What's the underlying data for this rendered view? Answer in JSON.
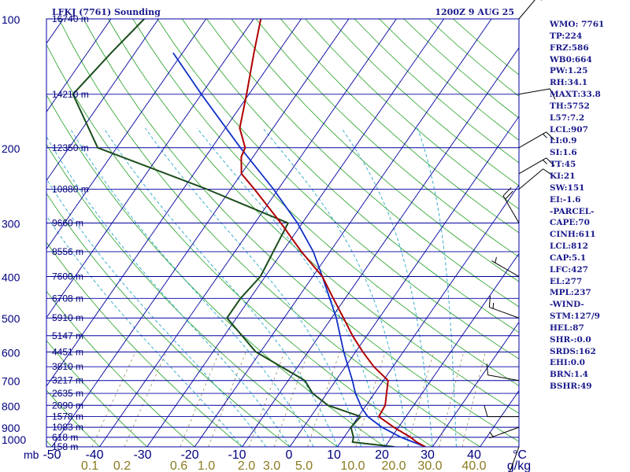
{
  "header": {
    "station_title": "LFKJ (7761) Sounding",
    "valid_time": "1200Z  9 AUG 25"
  },
  "colors": {
    "isobar": "#0000a0",
    "isotherm": "#0000a0",
    "dry_adiabat": "#22a022",
    "moist_adiabat": "#2aa6c8",
    "mixing_ratio": "#9a8a60",
    "temperature": "#b00000",
    "dewpoint": "#1b4d1b",
    "parcel": "#1030c8",
    "text": "#1a1a8c"
  },
  "chart_data": {
    "type": "skew-t log-p",
    "x_label": "°C",
    "x_ticks": [
      -50,
      -40,
      -30,
      -20,
      -10,
      0,
      10,
      20,
      30,
      40
    ],
    "x_range_at_1000mb": [
      -50,
      45
    ],
    "pressure_unit": "mb",
    "pressure_range": [
      1000,
      100
    ],
    "pressure_ticks": [
      100,
      200,
      300,
      400,
      500,
      600,
      700,
      800,
      900,
      1000
    ],
    "mixing_ratio_label": "g/kg",
    "mixing_ratio_lines": [
      "0.1",
      "0.2",
      "0.6",
      "1.0",
      "2.0",
      "3.0",
      "5.0",
      "10.0",
      "20.0",
      "30.0",
      "40.0"
    ],
    "height_labels": [
      {
        "p": 100,
        "label": "16740 m"
      },
      {
        "p": 150,
        "label": "14210 m"
      },
      {
        "p": 200,
        "label": "12350 m"
      },
      {
        "p": 250,
        "label": "10880 m"
      },
      {
        "p": 300,
        "label": "9660 m"
      },
      {
        "p": 350,
        "label": "8556 m"
      },
      {
        "p": 400,
        "label": "7600 m"
      },
      {
        "p": 450,
        "label": "6708 m"
      },
      {
        "p": 500,
        "label": "5910 m"
      },
      {
        "p": 550,
        "label": "5147 m"
      },
      {
        "p": 600,
        "label": "4451 m"
      },
      {
        "p": 650,
        "label": "3810 m"
      },
      {
        "p": 700,
        "label": "3217 m"
      },
      {
        "p": 750,
        "label": "2635 m"
      },
      {
        "p": 800,
        "label": "2090 m"
      },
      {
        "p": 850,
        "label": "1578 m"
      },
      {
        "p": 900,
        "label": "1083 m"
      },
      {
        "p": 950,
        "label": "618 m"
      },
      {
        "p": 1000,
        "label": "158 m"
      }
    ],
    "temperature": [
      {
        "p": 1000,
        "t": 28.5
      },
      {
        "p": 975,
        "t": 26.0
      },
      {
        "p": 950,
        "t": 24.0
      },
      {
        "p": 900,
        "t": 19.0
      },
      {
        "p": 850,
        "t": 14.3
      },
      {
        "p": 800,
        "t": 14.0
      },
      {
        "p": 700,
        "t": 11.0
      },
      {
        "p": 650,
        "t": 6.0
      },
      {
        "p": 600,
        "t": 1.5
      },
      {
        "p": 550,
        "t": -3.0
      },
      {
        "p": 500,
        "t": -7.5
      },
      {
        "p": 450,
        "t": -12.5
      },
      {
        "p": 400,
        "t": -18.0
      },
      {
        "p": 350,
        "t": -26.0
      },
      {
        "p": 300,
        "t": -34.5
      },
      {
        "p": 250,
        "t": -45.0
      },
      {
        "p": 230,
        "t": -50.0
      },
      {
        "p": 210,
        "t": -52.5
      },
      {
        "p": 200,
        "t": -53.0
      },
      {
        "p": 180,
        "t": -57.0
      },
      {
        "p": 150,
        "t": -60.5
      },
      {
        "p": 120,
        "t": -65.0
      },
      {
        "p": 100,
        "t": -68.5
      }
    ],
    "dewpoint": [
      {
        "p": 1000,
        "t": 22.0
      },
      {
        "p": 975,
        "t": 12.5
      },
      {
        "p": 950,
        "t": 12.0
      },
      {
        "p": 900,
        "t": 10.0
      },
      {
        "p": 850,
        "t": 10.5
      },
      {
        "p": 800,
        "t": 2.0
      },
      {
        "p": 750,
        "t": -3.0
      },
      {
        "p": 700,
        "t": -6.5
      },
      {
        "p": 600,
        "t": -21.0
      },
      {
        "p": 500,
        "t": -32.0
      },
      {
        "p": 450,
        "t": -32.0
      },
      {
        "p": 400,
        "t": -31.0
      },
      {
        "p": 300,
        "t": -33.0
      },
      {
        "p": 250,
        "t": -55.0
      },
      {
        "p": 200,
        "t": -84.0
      },
      {
        "p": 150,
        "t": -97.0
      },
      {
        "p": 120,
        "t": -95.0
      },
      {
        "p": 100,
        "t": -93.0
      }
    ],
    "parcel": [
      {
        "p": 1000,
        "t": 28.5
      },
      {
        "p": 950,
        "t": 22.0
      },
      {
        "p": 900,
        "t": 16.5
      },
      {
        "p": 850,
        "t": 12.0
      },
      {
        "p": 812,
        "t": 9.5
      },
      {
        "p": 750,
        "t": 6.0
      },
      {
        "p": 700,
        "t": 3.5
      },
      {
        "p": 600,
        "t": -2.5
      },
      {
        "p": 500,
        "t": -9.0
      },
      {
        "p": 400,
        "t": -18.0
      },
      {
        "p": 350,
        "t": -23.5
      },
      {
        "p": 300,
        "t": -31.0
      },
      {
        "p": 250,
        "t": -41.0
      },
      {
        "p": 200,
        "t": -54.0
      },
      {
        "p": 150,
        "t": -70.0
      },
      {
        "p": 120,
        "t": -82.0
      }
    ],
    "wind_barbs": [
      {
        "p": 100,
        "dir": 40,
        "kt": 5
      },
      {
        "p": 150,
        "dir": 80,
        "kt": 10
      },
      {
        "p": 200,
        "dir": 60,
        "kt": 15
      },
      {
        "p": 230,
        "dir": 60,
        "kt": 15
      },
      {
        "p": 250,
        "dir": 50,
        "kt": 10
      },
      {
        "p": 300,
        "dir": 330,
        "kt": 20
      },
      {
        "p": 400,
        "dir": 300,
        "kt": 5
      },
      {
        "p": 500,
        "dir": 290,
        "kt": 15
      },
      {
        "p": 700,
        "dir": 280,
        "kt": 10
      },
      {
        "p": 850,
        "dir": 270,
        "kt": 10
      },
      {
        "p": 900,
        "dir": 250,
        "kt": 5
      },
      {
        "p": 1000,
        "dir": 200,
        "kt": 5
      }
    ]
  },
  "indices": [
    "WMO: 7761",
    "TP:224",
    "FRZ:586",
    "WB0:664",
    "PW:1.25",
    "RH:34.1",
    "MAXT:33.8",
    "TH:5752",
    "L57:7.2",
    "LCL:907",
    "LI:0.9",
    "SI:1.6",
    "TT:45",
    "KI:21",
    "SW:151",
    "EI:-1.6",
    "-PARCEL-",
    "CAPE:70",
    "CINH:611",
    "LCL:812",
    "CAP:5.1",
    "LFC:427",
    "EL:277",
    "MPL:237",
    "-WIND-",
    "STM:127/9",
    "HEL:87",
    "SHR-:0.0",
    "SRDS:162",
    "EHI:0.0",
    "BRN:1.4",
    "BSHR:49"
  ]
}
